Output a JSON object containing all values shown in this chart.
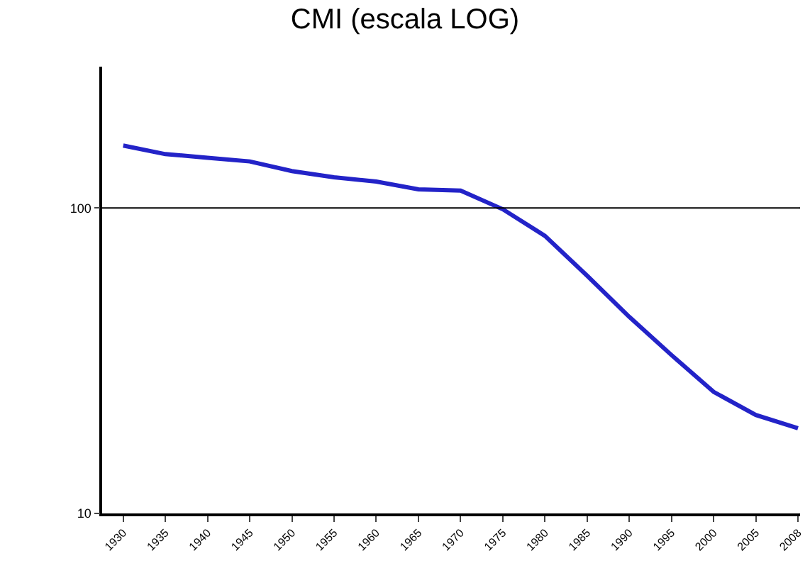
{
  "chart_data": {
    "type": "line",
    "title": "CMI (escala LOG)",
    "categories": [
      "1930",
      "1935",
      "1940",
      "1945",
      "1950",
      "1955",
      "1960",
      "1965",
      "1970",
      "1975",
      "1980",
      "1985",
      "1990",
      "1995",
      "2000",
      "2005",
      "2008"
    ],
    "series": [
      {
        "color": "#2323c8",
        "values": [
          160,
          150,
          146,
          142,
          132,
          126,
          122,
          115,
          114,
          99,
          81,
          60,
          44,
          33,
          25,
          21,
          19
        ]
      }
    ],
    "log": true,
    "ylim": [
      10,
      290
    ],
    "yticks": [
      10,
      100
    ],
    "ref_lines": [
      {
        "axis": "y",
        "value": 100,
        "color": "#000000"
      }
    ],
    "marker": "none",
    "line_style": "solid"
  }
}
